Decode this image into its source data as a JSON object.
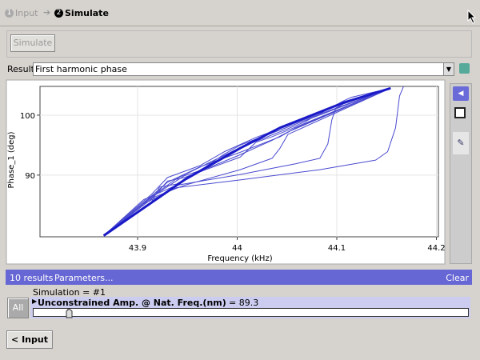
{
  "steps": [
    {
      "number": "1",
      "label": "Input"
    },
    {
      "number": "2",
      "label": "Simulate"
    }
  ],
  "simulate_button": "Simulate",
  "result_label": "Result:",
  "result_select": "First harmonic phase",
  "results_bar": {
    "count": "10 results",
    "parameters": "Parameters...",
    "clear": "Clear"
  },
  "simulation": "Simulation = #1",
  "all_button": "All",
  "parameter": {
    "name": "Unconstrained Amp. @ Nat. Freq.(nm)",
    "value_text": "= 89.3"
  },
  "back_button": "< Input",
  "chart_data": {
    "type": "line",
    "x_label": "Frequency (kHz)",
    "y_label": "Phase_1 (deg)",
    "xlim": [
      43.802,
      44.202
    ],
    "ylim": [
      79.7,
      104.8
    ],
    "xticks": [
      43.9,
      44,
      {
        "value": 44.1,
        "label": "44.1"
      },
      {
        "value": 44.2,
        "label": "44.2"
      }
    ],
    "yticks": [
      90,
      100
    ],
    "grid": true,
    "series": [
      {
        "color": "#1a1ac8",
        "line_width": 3,
        "x": [
          43.866,
          43.947,
          44.003,
          44.043,
          44.107,
          44.154
        ],
        "values": [
          79.9,
          89.2,
          94.5,
          97.9,
          102.1,
          104.5
        ]
      },
      {
        "color": "#4a4ad0",
        "line_width": 1,
        "x": [
          43.866,
          43.906,
          43.939,
          44.003,
          44.083,
          44.139,
          44.151,
          44.159,
          44.163,
          44.167
        ],
        "values": [
          79.9,
          85.2,
          87.9,
          89.2,
          90.9,
          92.5,
          93.9,
          97.9,
          103.2,
          104.8
        ]
      },
      {
        "color": "#4a4ad0",
        "line_width": 1,
        "x": [
          43.866,
          43.906,
          43.939,
          44.003,
          44.059,
          44.083,
          44.091,
          44.095,
          44.099,
          44.107,
          44.154
        ],
        "values": [
          79.9,
          85.9,
          88.3,
          90.1,
          91.9,
          92.8,
          95.2,
          99.2,
          101.2,
          101.9,
          104.5
        ]
      },
      {
        "color": "#4a4ad0",
        "line_width": 1,
        "x": [
          43.866,
          43.91,
          43.947,
          44.003,
          44.035,
          44.043,
          44.051,
          44.154
        ],
        "values": [
          79.9,
          85.9,
          88.3,
          90.9,
          92.8,
          94.5,
          96.8,
          104.5
        ]
      },
      {
        "color": "#4a4ad0",
        "line_width": 1,
        "x": [
          43.866,
          43.914,
          43.93,
          43.947,
          44.003,
          44.019,
          44.035,
          44.154
        ],
        "values": [
          79.9,
          86.0,
          89.0,
          89.6,
          93.0,
          95.5,
          96.4,
          104.5
        ]
      },
      {
        "color": "#4a4ad0",
        "line_width": 1,
        "x": [
          43.866,
          43.914,
          43.922,
          43.939,
          43.963,
          43.987,
          44.003,
          44.154
        ],
        "values": [
          79.9,
          85.5,
          88.0,
          88.5,
          90.8,
          93.5,
          95.0,
          104.5
        ]
      },
      {
        "color": "#4a4ad0",
        "line_width": 1,
        "x": [
          43.866,
          43.914,
          43.93,
          43.963,
          43.987,
          44.019,
          44.154
        ],
        "values": [
          79.9,
          86.8,
          89.6,
          91.6,
          93.9,
          96.3,
          104.5
        ]
      },
      {
        "color": "#4a4ad0",
        "line_width": 1,
        "x": [
          43.866,
          43.906,
          43.922,
          43.947,
          43.971,
          44.003,
          44.035,
          44.051,
          44.154
        ],
        "values": [
          79.9,
          85.2,
          87.2,
          89.9,
          91.2,
          93.4,
          95.8,
          97.2,
          104.5
        ]
      },
      {
        "color": "#4a4ad0",
        "line_width": 1,
        "x": [
          43.866,
          43.91,
          43.939,
          43.971,
          44.003,
          44.067,
          44.107,
          44.115,
          44.154
        ],
        "values": [
          79.9,
          85.9,
          89.4,
          92.0,
          94.6,
          98.8,
          102.4,
          103.0,
          104.5
        ]
      },
      {
        "color": "#4a4ad0",
        "line_width": 1,
        "x": [
          43.866,
          43.906,
          43.93,
          43.963,
          44.003,
          44.043,
          44.059,
          44.154
        ],
        "values": [
          79.9,
          85.4,
          88.8,
          91.4,
          93.8,
          96.4,
          97.9,
          104.5
        ]
      }
    ]
  }
}
